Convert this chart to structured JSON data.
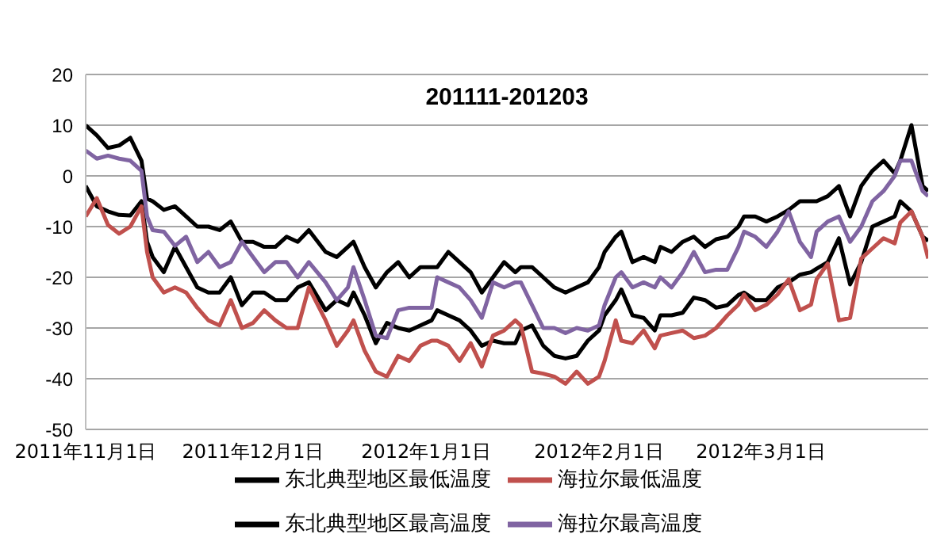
{
  "chart_data": {
    "type": "line",
    "title": "201111-201203",
    "x": [
      "2011-11-01",
      "2011-11-03",
      "2011-11-05",
      "2011-11-07",
      "2011-11-09",
      "2011-11-11",
      "2011-11-12",
      "2011-11-13",
      "2011-11-15",
      "2011-11-17",
      "2011-11-19",
      "2011-11-21",
      "2011-11-23",
      "2011-11-25",
      "2011-11-27",
      "2011-11-29",
      "2011-12-01",
      "2011-12-03",
      "2011-12-05",
      "2011-12-07",
      "2011-12-09",
      "2011-12-11",
      "2011-12-14",
      "2011-12-16",
      "2011-12-18",
      "2011-12-19",
      "2011-12-21",
      "2011-12-23",
      "2011-12-25",
      "2011-12-27",
      "2011-12-29",
      "2011-12-31",
      "2012-01-02",
      "2012-01-03",
      "2012-01-05",
      "2012-01-07",
      "2012-01-09",
      "2012-01-11",
      "2012-01-13",
      "2012-01-15",
      "2012-01-17",
      "2012-01-18",
      "2012-01-20",
      "2012-01-22",
      "2012-01-24",
      "2012-01-26",
      "2012-01-28",
      "2012-01-30",
      "2012-02-01",
      "2012-02-02",
      "2012-02-04",
      "2012-02-05",
      "2012-02-07",
      "2012-02-09",
      "2012-02-11",
      "2012-02-12",
      "2012-02-14",
      "2012-02-16",
      "2012-02-18",
      "2012-02-20",
      "2012-02-22",
      "2012-02-24",
      "2012-02-26",
      "2012-02-27",
      "2012-02-29",
      "2012-03-02",
      "2012-03-04",
      "2012-03-06",
      "2012-03-08",
      "2012-03-10",
      "2012-03-11",
      "2012-03-13",
      "2012-03-15",
      "2012-03-17",
      "2012-03-19",
      "2012-03-21",
      "2012-03-23",
      "2012-03-25",
      "2012-03-26",
      "2012-03-28",
      "2012-03-30",
      "2012-03-31"
    ],
    "series": [
      {
        "name": "东北典型地区最低温度",
        "color": "#000000",
        "values": [
          -2,
          -6,
          -7,
          -7.7,
          -7.8,
          -5,
          -13,
          -16,
          -19,
          -14,
          -18,
          -22,
          -23,
          -23,
          -20,
          -25.5,
          -23,
          -23,
          -24.5,
          -24.5,
          -22,
          -21,
          -26.5,
          -24.5,
          -25.5,
          -23,
          -27.5,
          -33,
          -29,
          -30,
          -30.5,
          -29.5,
          -28.5,
          -26.5,
          -27.5,
          -28.5,
          -30.5,
          -33.5,
          -32.5,
          -33,
          -33,
          -30.5,
          -29.5,
          -33.5,
          -35.5,
          -36,
          -35.5,
          -32.5,
          -30.5,
          -27.5,
          -24.5,
          -22.4,
          -27.5,
          -28,
          -30.5,
          -27.5,
          -27.5,
          -27,
          -24,
          -24.5,
          -26,
          -25.5,
          -23.5,
          -23,
          -24.5,
          -24.5,
          -22,
          -21,
          -19.5,
          -19,
          -18.3,
          -17,
          -12.3,
          -21.4,
          -17,
          -10,
          -9,
          -8,
          -5,
          -7,
          -12,
          -12.8
        ]
      },
      {
        "name": "海拉尔最低温度",
        "color": "#c0504d",
        "values": [
          -8,
          -4.4,
          -9.7,
          -11.4,
          -10,
          -6,
          -15,
          -20,
          -23,
          -22,
          -23,
          -26,
          -28.5,
          -29.5,
          -24.5,
          -30,
          -29,
          -26.5,
          -28.5,
          -30,
          -30,
          -22,
          -28.5,
          -33.5,
          -30.5,
          -28.5,
          -34.5,
          -38.6,
          -39.6,
          -35.5,
          -36.5,
          -33.5,
          -32.5,
          -32.5,
          -33.5,
          -36.5,
          -33,
          -37.6,
          -31.5,
          -30.5,
          -28.5,
          -29.5,
          -38.6,
          -39,
          -39.6,
          -41,
          -38.6,
          -41,
          -39.6,
          -36.5,
          -28.5,
          -32.5,
          -33,
          -30.5,
          -34,
          -31.5,
          -31,
          -30.5,
          -32,
          -31.5,
          -30,
          -27.5,
          -25.4,
          -23.4,
          -26.5,
          -25.4,
          -23.4,
          -20.4,
          -26.5,
          -25.4,
          -20.4,
          -17.3,
          -28.5,
          -28,
          -16.3,
          -14.3,
          -12.3,
          -13.3,
          -9.2,
          -7,
          -12,
          -16.3
        ]
      },
      {
        "name": "东北典型地区最高温度",
        "color": "#000000",
        "values": [
          10,
          8,
          5.5,
          6,
          7.5,
          3,
          -4.5,
          -5,
          -6.7,
          -6,
          -8,
          -10,
          -10,
          -10.7,
          -9,
          -13,
          -13,
          -14,
          -14,
          -12,
          -13,
          -10.7,
          -15,
          -16,
          -14,
          -13,
          -18,
          -22,
          -19,
          -17,
          -20,
          -18,
          -18,
          -18,
          -15,
          -17,
          -19,
          -23,
          -20,
          -17,
          -19,
          -18,
          -18,
          -20,
          -22,
          -23,
          -22,
          -21,
          -18,
          -15,
          -12,
          -11,
          -17,
          -16,
          -17,
          -14,
          -15,
          -13,
          -12,
          -14,
          -12.5,
          -12,
          -10,
          -8,
          -8,
          -9,
          -8,
          -6.7,
          -5,
          -5,
          -5,
          -4,
          -2,
          -8,
          -2,
          1,
          3,
          0.5,
          3,
          10,
          -2,
          -3
        ]
      },
      {
        "name": "海拉尔最高温度",
        "color": "#8064a2",
        "values": [
          5,
          3.4,
          4,
          3.4,
          3,
          1,
          -8,
          -10.7,
          -11,
          -13.8,
          -12,
          -17,
          -15,
          -18,
          -17,
          -13,
          -16,
          -19,
          -17,
          -17,
          -20,
          -17,
          -21,
          -24.5,
          -22,
          -18,
          -24.5,
          -31.5,
          -32,
          -26.5,
          -26,
          -26,
          -26,
          -20,
          -21,
          -22,
          -24.5,
          -28,
          -21,
          -22,
          -21,
          -21,
          -25.5,
          -30,
          -30,
          -31,
          -30,
          -30.5,
          -29.5,
          -25.5,
          -20,
          -19,
          -22,
          -21,
          -22,
          -20,
          -22,
          -19,
          -15,
          -19,
          -18.5,
          -18.5,
          -14,
          -11,
          -12,
          -14,
          -11,
          -7,
          -13,
          -16,
          -11,
          -9,
          -8,
          -13,
          -10,
          -5,
          -3,
          0,
          3,
          3,
          -3,
          -4
        ]
      }
    ],
    "xlim": [
      "2011-11-01",
      "2012-03-31"
    ],
    "xticks": [
      {
        "value": "2011-11-01",
        "label": "2011年11月1日"
      },
      {
        "value": "2011-12-01",
        "label": "2011年12月1日"
      },
      {
        "value": "2012-01-01",
        "label": "2012年1月1日"
      },
      {
        "value": "2012-02-01",
        "label": "2012年2月1日"
      },
      {
        "value": "2012-03-01",
        "label": "2012年3月1日"
      }
    ],
    "ylim": [
      -50,
      20
    ],
    "yticks": [
      -50,
      -40,
      -30,
      -20,
      -10,
      0,
      10,
      20
    ],
    "grid": "y",
    "legend": "bottom",
    "marker": "none",
    "line_style": "solid"
  }
}
